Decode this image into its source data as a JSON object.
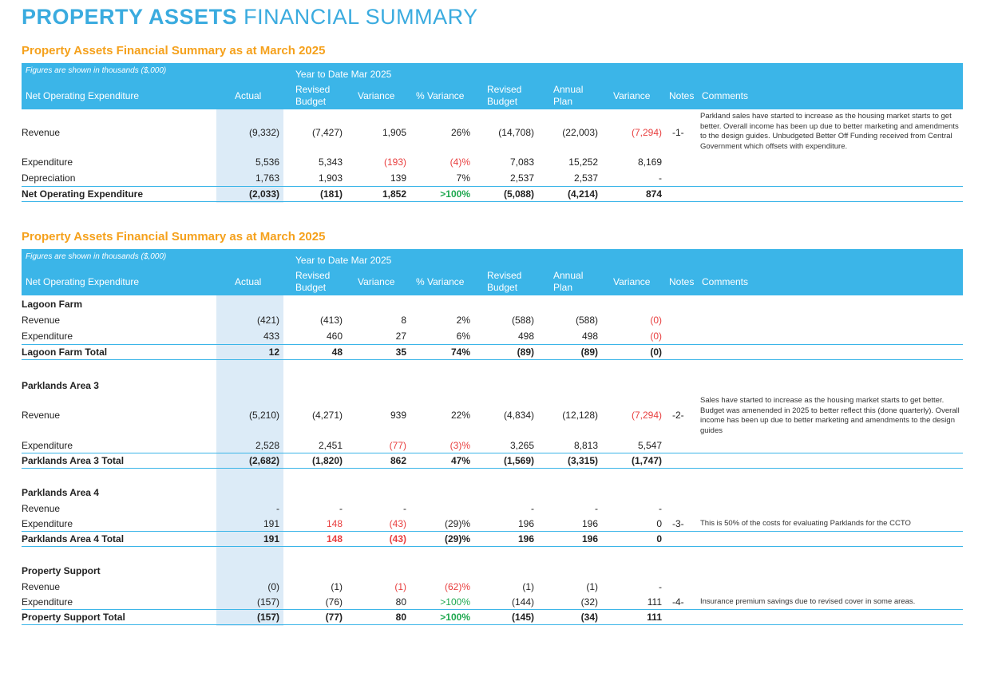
{
  "page": {
    "title_bold": "PROPERTY ASSETS",
    "title_light": "FINANCIAL SUMMARY"
  },
  "colors": {
    "title_blue": "#3aabdf",
    "section_orange": "#f5a11c",
    "header_blue": "#3bb5e8",
    "highlight_column": "#dcebf7",
    "negative_red": "#e83e3e",
    "positive_green": "#1ea84f"
  },
  "header": {
    "figures_note": "Figures are shown in thousands ($,000)",
    "ytd_label": "Year to Date Mar 2025",
    "col_label": "Net Operating Expenditure",
    "actual": "Actual",
    "revised_budget_1": "Revised",
    "revised_budget_2": "Budget",
    "variance": "Variance",
    "pct_variance": "% Variance",
    "revised_budget_b1": "Revised",
    "revised_budget_b2": "Budget",
    "annual_plan_1": "Annual",
    "annual_plan_2": "Plan",
    "variance2": "Variance",
    "notes": "Notes",
    "comments": "Comments"
  },
  "section1": {
    "title": "Property Assets Financial Summary as at March 2025",
    "rows": [
      {
        "label": "Revenue",
        "actual": "(9,332)",
        "rev_budget": "(7,427)",
        "variance": "1,905",
        "pct": "26%",
        "rev_budget_annual": "(14,708)",
        "annual_plan": "(22,003)",
        "variance2": "(7,294)",
        "note": "-1-"
      },
      {
        "label": "Expenditure",
        "actual": "5,536",
        "rev_budget": "5,343",
        "variance": "(193)",
        "pct": "(4)%",
        "rev_budget_annual": "7,083",
        "annual_plan": "15,252",
        "variance2": "8,169",
        "note": ""
      },
      {
        "label": "Depreciation",
        "actual": "1,763",
        "rev_budget": "1,903",
        "variance": "139",
        "pct": "7%",
        "rev_budget_annual": "2,537",
        "annual_plan": "2,537",
        "variance2": "-",
        "note": ""
      },
      {
        "label": "Net Operating Expenditure",
        "actual": "(2,033)",
        "rev_budget": "(181)",
        "variance": "1,852",
        "pct": ">100%",
        "rev_budget_annual": "(5,088)",
        "annual_plan": "(4,214)",
        "variance2": "874",
        "note": ""
      }
    ],
    "comment1": "Parkland sales have started to increase as the housing market starts to get better. Overall income has been up due to better marketing and amendments to the design guides. Unbudgeted Better Off Funding received from Central Government which offsets with expenditure."
  },
  "section2": {
    "title": "Property Assets Financial Summary as at March 2025",
    "groups": [
      {
        "name": "Lagoon Farm",
        "rows": [
          {
            "label": "Revenue",
            "actual": "(421)",
            "rev_budget": "(413)",
            "variance": "8",
            "pct": "2%",
            "rev_budget_annual": "(588)",
            "annual_plan": "(588)",
            "variance2": "(0)",
            "note": ""
          },
          {
            "label": "Expenditure",
            "actual": "433",
            "rev_budget": "460",
            "variance": "27",
            "pct": "6%",
            "rev_budget_annual": "498",
            "annual_plan": "498",
            "variance2": "(0)",
            "note": ""
          }
        ],
        "total": {
          "label": "Lagoon Farm Total",
          "actual": "12",
          "rev_budget": "48",
          "variance": "35",
          "pct": "74%",
          "rev_budget_annual": "(89)",
          "annual_plan": "(89)",
          "variance2": "(0)"
        }
      },
      {
        "name": "Parklands Area 3",
        "rows": [
          {
            "label": "Revenue",
            "actual": "(5,210)",
            "rev_budget": "(4,271)",
            "variance": "939",
            "pct": "22%",
            "rev_budget_annual": "(4,834)",
            "annual_plan": "(12,128)",
            "variance2": "(7,294)",
            "note": "-2-"
          },
          {
            "label": "Expenditure",
            "actual": "2,528",
            "rev_budget": "2,451",
            "variance": "(77)",
            "pct": "(3)%",
            "rev_budget_annual": "3,265",
            "annual_plan": "8,813",
            "variance2": "5,547",
            "note": ""
          }
        ],
        "total": {
          "label": "Parklands Area 3 Total",
          "actual": "(2,682)",
          "rev_budget": "(1,820)",
          "variance": "862",
          "pct": "47%",
          "rev_budget_annual": "(1,569)",
          "annual_plan": "(3,315)",
          "variance2": "(1,747)"
        },
        "comment": "Sales have started to increase as the housing market starts to get better. Budget was amenended in 2025 to better reflect this (done quarterly). Overall income has been up due to better marketing and amendments to the design guides"
      },
      {
        "name": "Parklands Area 4",
        "rows": [
          {
            "label": "Revenue",
            "actual": "-",
            "rev_budget": "-",
            "variance": "-",
            "pct": "",
            "rev_budget_annual": "-",
            "annual_plan": "-",
            "variance2": "-",
            "note": ""
          },
          {
            "label": "Expenditure",
            "actual": "191",
            "rev_budget": "148",
            "variance": "(43)",
            "pct": "(29)%",
            "rev_budget_annual": "196",
            "annual_plan": "196",
            "variance2": "0",
            "note": "-3-"
          }
        ],
        "total": {
          "label": "Parklands Area 4 Total",
          "actual": "191",
          "rev_budget": "148",
          "variance": "(43)",
          "pct": "(29)%",
          "rev_budget_annual": "196",
          "annual_plan": "196",
          "variance2": "0"
        },
        "comment": "This is 50% of the costs for evaluating Parklands for the CCTO"
      },
      {
        "name": "Property Support",
        "rows": [
          {
            "label": "Revenue",
            "actual": "(0)",
            "rev_budget": "(1)",
            "variance": "(1)",
            "pct": "(62)%",
            "rev_budget_annual": "(1)",
            "annual_plan": "(1)",
            "variance2": "-",
            "note": ""
          },
          {
            "label": "Expenditure",
            "actual": "(157)",
            "rev_budget": "(76)",
            "variance": "80",
            "pct": ">100%",
            "rev_budget_annual": "(144)",
            "annual_plan": "(32)",
            "variance2": "111",
            "note": "-4-"
          }
        ],
        "total": {
          "label": "Property Support Total",
          "actual": "(157)",
          "rev_budget": "(77)",
          "variance": "80",
          "pct": ">100%",
          "rev_budget_annual": "(145)",
          "annual_plan": "(34)",
          "variance2": "111"
        },
        "comment": "Insurance premium savings due to revised cover in some areas."
      }
    ]
  }
}
